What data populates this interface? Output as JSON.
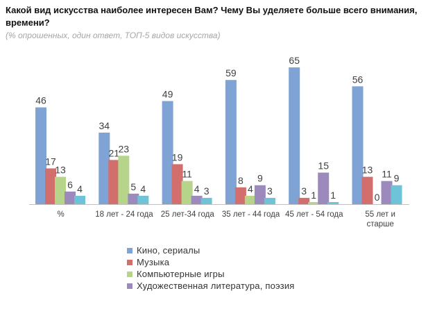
{
  "title": "Какой вид искусства наиболее интересен Вам?  Чему  Вы уделяете больше всего внимания, времени?",
  "subtitle": "(% опрошенных, один ответ, ТОП-5 видов искусства)",
  "chart_data": {
    "type": "bar",
    "categories": [
      "%",
      "18 лет - 24 года",
      "25 лет-34 года",
      "35 лет - 44 года",
      "45 лет - 54 года",
      "55 лет и старше"
    ],
    "series": [
      {
        "name": "Кино, сериалы",
        "color": "#7fa3d4",
        "values": [
          46,
          34,
          49,
          59,
          65,
          56
        ]
      },
      {
        "name": "Музыка",
        "color": "#d26f6d",
        "values": [
          17,
          21,
          19,
          8,
          3,
          13
        ]
      },
      {
        "name": "Компьютерные игры",
        "color": "#b6d48a",
        "values": [
          13,
          23,
          11,
          4,
          1,
          0
        ]
      },
      {
        "name": "Художественная литература, поэзия",
        "color": "#9d8abd",
        "values": [
          6,
          5,
          4,
          9,
          15,
          11
        ]
      },
      {
        "name": "",
        "color": "#6ec3d7",
        "values": [
          4,
          4,
          3,
          3,
          1,
          9
        ]
      }
    ],
    "ylim": [
      0,
      70
    ],
    "grid": false,
    "legend_position": "bottom"
  }
}
